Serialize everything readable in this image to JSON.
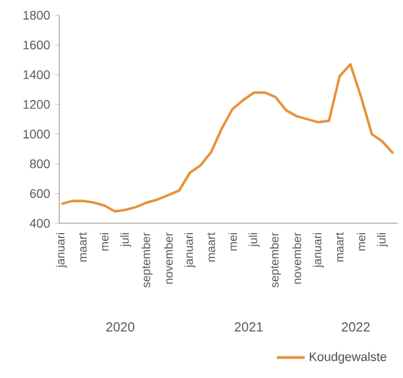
{
  "chart_data": {
    "type": "line",
    "categories": [
      "januari",
      null,
      "maart",
      null,
      "mei",
      null,
      "juli",
      null,
      "september",
      null,
      "november",
      null,
      "januari",
      null,
      "maart",
      null,
      "mei",
      null,
      "juli",
      null,
      "september",
      null,
      "november",
      null,
      "januari",
      null,
      "maart",
      null,
      "mei",
      null,
      "juli",
      null
    ],
    "series": [
      {
        "name": "Koudgewalste",
        "color": "#e8913a",
        "values": [
          530,
          550,
          550,
          540,
          520,
          480,
          490,
          510,
          540,
          560,
          590,
          620,
          740,
          790,
          880,
          1040,
          1170,
          1230,
          1280,
          1280,
          1250,
          1160,
          1120,
          1100,
          1080,
          1090,
          1390,
          1470,
          1250,
          1000,
          950,
          870
        ]
      }
    ],
    "ylim": [
      400,
      1800
    ],
    "yticks": [
      400,
      600,
      800,
      1000,
      1200,
      1400,
      1600,
      1800
    ],
    "annotations": [
      "2020",
      "2021",
      "2022"
    ],
    "legend": "bottom right",
    "marker": "none",
    "line_style": "solid",
    "grid": false
  }
}
